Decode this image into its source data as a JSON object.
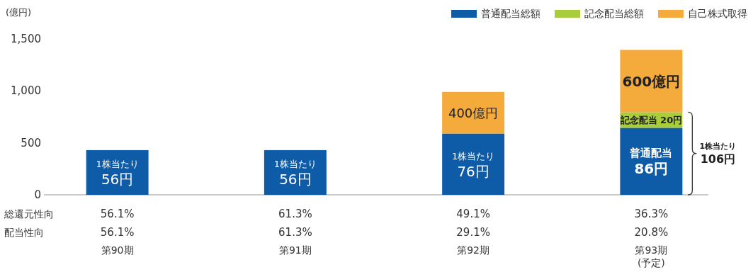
{
  "chart_data": {
    "type": "bar",
    "stacked": true,
    "ylabel": "(億円)",
    "categories": [
      "第90期",
      "第91期",
      "第92期",
      "第93期\n(予定)"
    ],
    "series": [
      {
        "name": "普通配当総額",
        "color": "#0e5ba8",
        "values": [
          430,
          430,
          590,
          645
        ]
      },
      {
        "name": "記念配当総額",
        "color": "#a9cc3a",
        "values": [
          null,
          null,
          null,
          150
        ]
      },
      {
        "name": "自己株式取得",
        "color": "#f5aa3c",
        "values": [
          null,
          null,
          400,
          600
        ]
      }
    ],
    "ylim": [
      0,
      1500
    ],
    "yticks": [
      0,
      500,
      {
        "value": 1000,
        "label": "1,000"
      },
      {
        "value": 1500,
        "label": "1,500"
      }
    ],
    "grid": false,
    "legend": "top right",
    "annotations": [
      "1株当たり",
      "56円",
      "1株当たり",
      "56円",
      "1株当たり",
      "76円",
      "400億円",
      "普通配当",
      "86円",
      "記念配当 20円",
      "600億円",
      "1株当たり",
      "106円",
      "総還元性向",
      "56.1%",
      "61.3%",
      "49.1%",
      "36.3%",
      "配当性向",
      "56.1%",
      "61.3%",
      "29.1%",
      "20.8%"
    ]
  }
}
